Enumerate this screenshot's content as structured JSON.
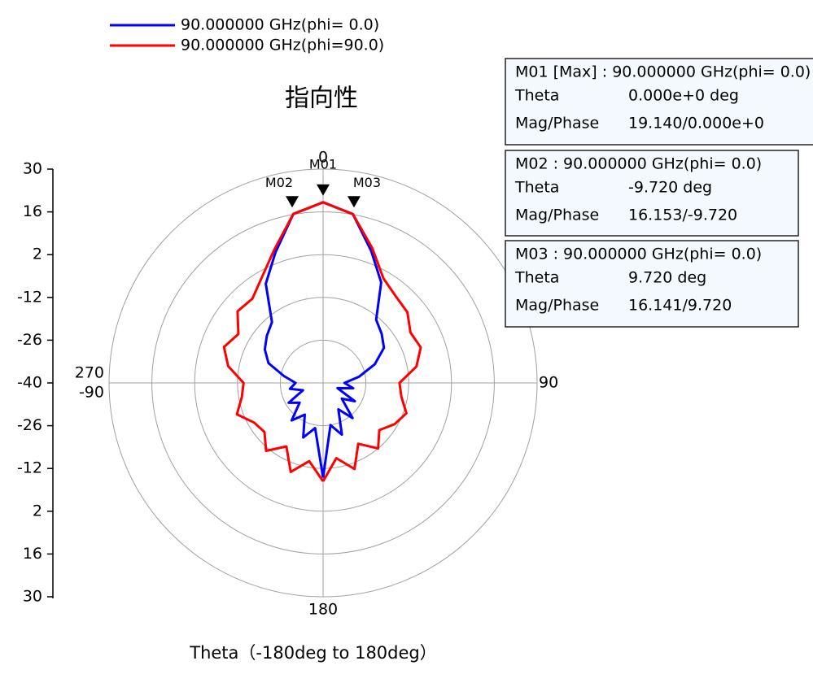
{
  "chart_data": {
    "type": "polar",
    "title": "指向性",
    "xlabel": "Theta（-180deg to 180deg）",
    "theta": [
      -180,
      -170,
      -160,
      -150,
      -140,
      -130,
      -120,
      -110,
      -100,
      -90,
      -80,
      -70,
      -60,
      -50,
      -40,
      -30,
      -20,
      -10,
      0,
      10,
      20,
      30,
      40,
      50,
      60,
      70,
      80,
      90,
      100,
      110,
      120,
      130,
      140,
      150,
      160,
      170,
      180
    ],
    "series": [
      {
        "name": "90.000000 GHz(phi= 0.0)",
        "color": "#0000ff",
        "values": [
          -9,
          -25,
          -21,
          -28,
          -24,
          -30,
          -27,
          -33,
          -29,
          -31,
          -27,
          -21,
          -18,
          -16,
          -14,
          -2.5,
          5.5,
          16.153,
          19.14,
          16.141,
          6,
          -2,
          -13,
          -15,
          -17,
          -22,
          -28,
          -33,
          -30,
          -35,
          -28,
          -32,
          -25,
          -30,
          -22,
          -26,
          -9
        ]
      },
      {
        "name": "90.000000 GHz(phi=90.0)",
        "color": "#ff0000",
        "values": [
          -7.8,
          -14,
          -9,
          -16,
          -11,
          -15,
          -14,
          -10,
          -13,
          -14,
          -8.5,
          -5.5,
          -8,
          -3.5,
          -4,
          0,
          6.5,
          16.15,
          19.14,
          16.1,
          7,
          -0.5,
          -3,
          -4,
          -7,
          -6,
          -9,
          -15,
          -14,
          -11,
          -13,
          -16,
          -12,
          -17,
          -10,
          -15,
          -7.8
        ]
      }
    ],
    "rlim": [
      -40,
      30
    ],
    "rticks": [
      30,
      16,
      2,
      -12,
      -26,
      -40
    ],
    "theta_ticks": [
      {
        "value": 0,
        "label": "0"
      },
      {
        "value": 90,
        "label": "90"
      },
      {
        "value": 180,
        "label": "180"
      },
      {
        "value": 270,
        "label": "270"
      },
      {
        "value": -90,
        "label": "-90"
      }
    ],
    "grid": true,
    "markers": [
      {
        "name": "M01",
        "theta": 0,
        "value": 19.14,
        "header": "M01 [Max] : 90.000000 GHz(phi= 0.0)",
        "rows": [
          [
            "Theta",
            "0.000e+0 deg"
          ],
          [
            "Mag/Phase",
            "19.140/0.000e+0"
          ]
        ]
      },
      {
        "name": "M02",
        "theta": -9.72,
        "value": 16.153,
        "header": "M02 : 90.000000 GHz(phi= 0.0)",
        "rows": [
          [
            "Theta",
            "-9.720 deg"
          ],
          [
            "Mag/Phase",
            "16.153/-9.720"
          ]
        ]
      },
      {
        "name": "M03",
        "theta": 9.72,
        "value": 16.141,
        "header": "M03 : 90.000000 GHz(phi= 0.0)",
        "rows": [
          [
            "Theta",
            "9.720 deg"
          ],
          [
            "Mag/Phase",
            "16.141/9.720"
          ]
        ]
      }
    ]
  }
}
